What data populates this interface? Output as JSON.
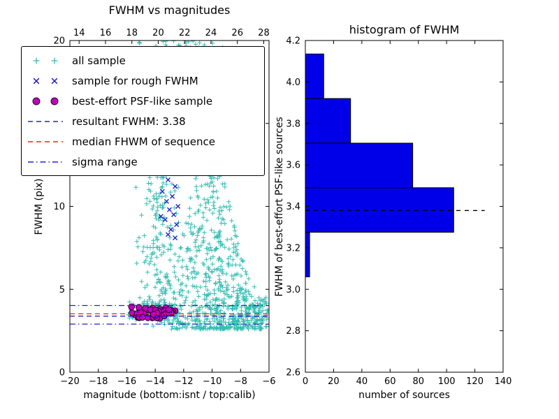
{
  "colors": {
    "background": "#ffffff",
    "axis": "#000000",
    "all_sample": "#35bdb2",
    "rough_sample": "#2222cc",
    "psf_fill": "#bf00bf",
    "psf_edge": "#2a002a",
    "hist_fill": "#0000e8",
    "hist_edge": "#000000"
  },
  "legend": {
    "items": [
      {
        "label": "all sample",
        "marker": "plus",
        "color": "#35bdb2"
      },
      {
        "label": "sample for rough FWHM",
        "marker": "x",
        "color": "#2222cc"
      },
      {
        "label": "best-effort PSF-like sample",
        "marker": "circle",
        "color": "#bf00bf",
        "edge": "#2a002a"
      },
      {
        "label": "resultant FWHM: 3.38",
        "marker": "dashed",
        "color": "#2222cc"
      },
      {
        "label": "median FHWM of sequence",
        "marker": "dashed",
        "color": "#ff1a1a"
      },
      {
        "label": "sigma range",
        "marker": "dashdot",
        "color": "#2222cc"
      }
    ]
  },
  "chart_data": [
    {
      "type": "scatter",
      "title": "FWHM vs magnitudes",
      "xlabel": "magnitude (bottom:isnt / top:calib)",
      "ylabel": "FWHM (pix)",
      "xlim": [
        -20,
        -6
      ],
      "ylim": [
        0,
        20
      ],
      "x_ticks_bottom": [
        -20,
        -18,
        -16,
        -14,
        -12,
        -10,
        -8,
        -6
      ],
      "x_ticks_top": [
        14,
        16,
        18,
        20,
        22,
        24,
        26,
        28
      ],
      "x_top_lim": [
        13.3,
        28.4
      ],
      "y_ticks": [
        0,
        5,
        10,
        15,
        20
      ],
      "series": [
        {
          "name": "all sample",
          "marker": "+",
          "color": "#35bdb2",
          "seed": 42,
          "clusters": [
            {
              "dist": "column",
              "n": 290,
              "x": [
                -15.5,
                -12.2
              ],
              "y": [
                3.8,
                20
              ],
              "ybias": 1.35
            },
            {
              "dist": "blob",
              "n": 640,
              "x": [
                -13.2,
                -5.9
              ],
              "ybase": 2.6,
              "hbase": 1.8,
              "hpeak": 9.5,
              "hcenter": -10.2,
              "hwidth": 4.2,
              "ypow": 1.9
            },
            {
              "dist": "band",
              "n": 150,
              "x": [
                -16.0,
                -12.3
              ],
              "ymean": 3.6,
              "ysd": 0.3
            },
            {
              "dist": "band",
              "n": 70,
              "x": [
                -8.3,
                -5.9
              ],
              "ymean": 3.6,
              "ysd": 0.5
            },
            {
              "dist": "uniform",
              "n": 45,
              "x": [
                -13.8,
                -7.5
              ],
              "y": [
                12,
                20
              ]
            },
            {
              "dist": "uniform",
              "n": 26,
              "x": [
                -13.8,
                -9.8
              ],
              "y": [
                19.2,
                20
              ]
            }
          ]
        },
        {
          "name": "sample for rough FWHM",
          "marker": "x",
          "color": "#2222cc",
          "points": [
            [
              -13.4,
              12.4
            ],
            [
              -12.9,
              12.1
            ],
            [
              -13.1,
              11.6
            ],
            [
              -12.6,
              11.2
            ],
            [
              -13.5,
              10.9
            ],
            [
              -12.8,
              10.6
            ],
            [
              -13.2,
              10.3
            ],
            [
              -12.4,
              10.0
            ],
            [
              -13.0,
              9.8
            ],
            [
              -12.7,
              9.5
            ],
            [
              -13.3,
              9.2
            ],
            [
              -12.5,
              8.9
            ],
            [
              -12.9,
              8.6
            ],
            [
              -13.1,
              8.3
            ],
            [
              -12.6,
              8.1
            ],
            [
              -13.6,
              9.4
            ]
          ]
        },
        {
          "name": "best-effort PSF-like sample",
          "marker": "o",
          "color": "#bf00bf",
          "edge": "#2a002a",
          "seed": 7,
          "clusters": [
            {
              "dist": "band",
              "n": 62,
              "x": [
                -15.7,
                -12.5
              ],
              "ymean": 3.55,
              "ysd": 0.17,
              "yclip": [
                3.25,
                3.95
              ]
            }
          ]
        }
      ],
      "hlines": [
        {
          "name": "resultant FWHM",
          "value": 3.38,
          "style": "dashed",
          "color": "#2222cc"
        },
        {
          "name": "median FHWM of sequence",
          "value": 3.52,
          "style": "dashed",
          "color": "#ff1a1a"
        },
        {
          "name": "sigma range low",
          "value": 2.9,
          "style": "dashdot",
          "color": "#2222cc"
        },
        {
          "name": "sigma range high",
          "value": 4.02,
          "style": "dashdot",
          "color": "#2222cc"
        }
      ]
    },
    {
      "type": "bar",
      "orientation": "horizontal",
      "title": "histogram of FWHM",
      "xlabel": "number of sources",
      "ylabel": "FWHM of best-effort PSF-like sources",
      "xlim": [
        0,
        140
      ],
      "ylim": [
        2.6,
        4.2
      ],
      "x_ticks": [
        0,
        20,
        40,
        60,
        80,
        100,
        120,
        140
      ],
      "y_ticks": [
        2.6,
        2.8,
        3.0,
        3.2,
        3.4,
        3.6,
        3.8,
        4.0,
        4.2
      ],
      "bin_edges": [
        3.06,
        3.275,
        3.49,
        3.705,
        3.92,
        4.135
      ],
      "counts": [
        3,
        105,
        76,
        32,
        13
      ],
      "marker_line": {
        "value": 3.38,
        "style": "dashed",
        "color": "#000000",
        "xmax": 127
      }
    }
  ]
}
